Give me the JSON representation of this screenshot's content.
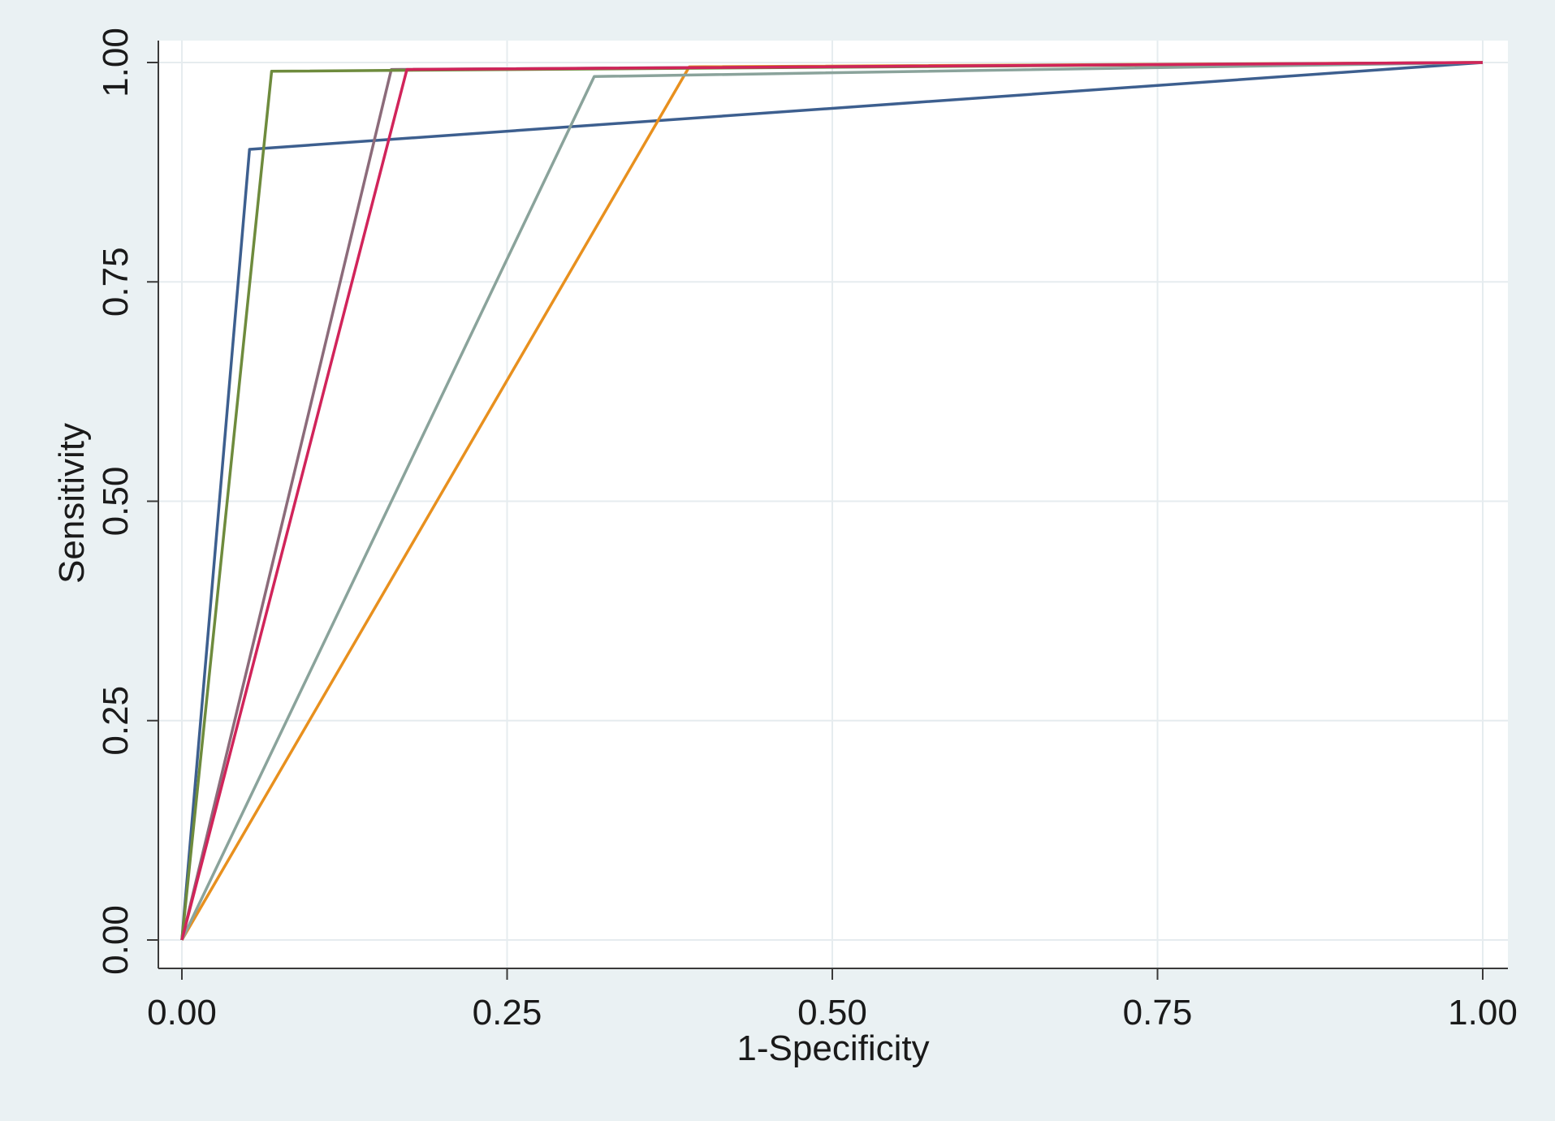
{
  "chart_data": {
    "type": "line",
    "title": "",
    "xlabel": "1-Specificity",
    "ylabel": "Sensitivity",
    "xlim": [
      0,
      1
    ],
    "ylim": [
      0,
      1
    ],
    "x_ticks": [
      "0.00",
      "0.25",
      "0.50",
      "0.75",
      "1.00"
    ],
    "y_ticks": [
      "0.00",
      "0.25",
      "0.50",
      "0.75",
      "1.00"
    ],
    "x_tick_values": [
      0,
      0.25,
      0.5,
      0.75,
      1
    ],
    "y_tick_values": [
      0,
      0.25,
      0.5,
      0.75,
      1
    ],
    "grid": true,
    "legend": "none",
    "colors": {
      "background": "#eaf1f3",
      "plot_background": "#ffffff",
      "grid": "#e6ecef",
      "axis": "#3a3a3a"
    },
    "series": [
      {
        "color": "#3d5f8f",
        "points": [
          [
            0,
            0
          ],
          [
            0.052,
            0.901
          ],
          [
            1,
            1
          ]
        ]
      },
      {
        "color": "#e8901e",
        "points": [
          [
            0,
            0
          ],
          [
            0.39,
            0.995
          ],
          [
            1,
            1
          ]
        ]
      },
      {
        "color": "#8c6b7a",
        "points": [
          [
            0,
            0
          ],
          [
            0.161,
            0.992
          ],
          [
            1,
            1
          ]
        ]
      },
      {
        "color": "#6e8b3d",
        "points": [
          [
            0,
            0
          ],
          [
            0.069,
            0.99
          ],
          [
            1,
            1
          ]
        ]
      },
      {
        "color": "#8aa39b",
        "points": [
          [
            0,
            0
          ],
          [
            0.317,
            0.984
          ],
          [
            1,
            1
          ]
        ]
      },
      {
        "color": "#d1245a",
        "points": [
          [
            0,
            0
          ],
          [
            0.173,
            0.992
          ],
          [
            1,
            1
          ]
        ]
      }
    ]
  }
}
